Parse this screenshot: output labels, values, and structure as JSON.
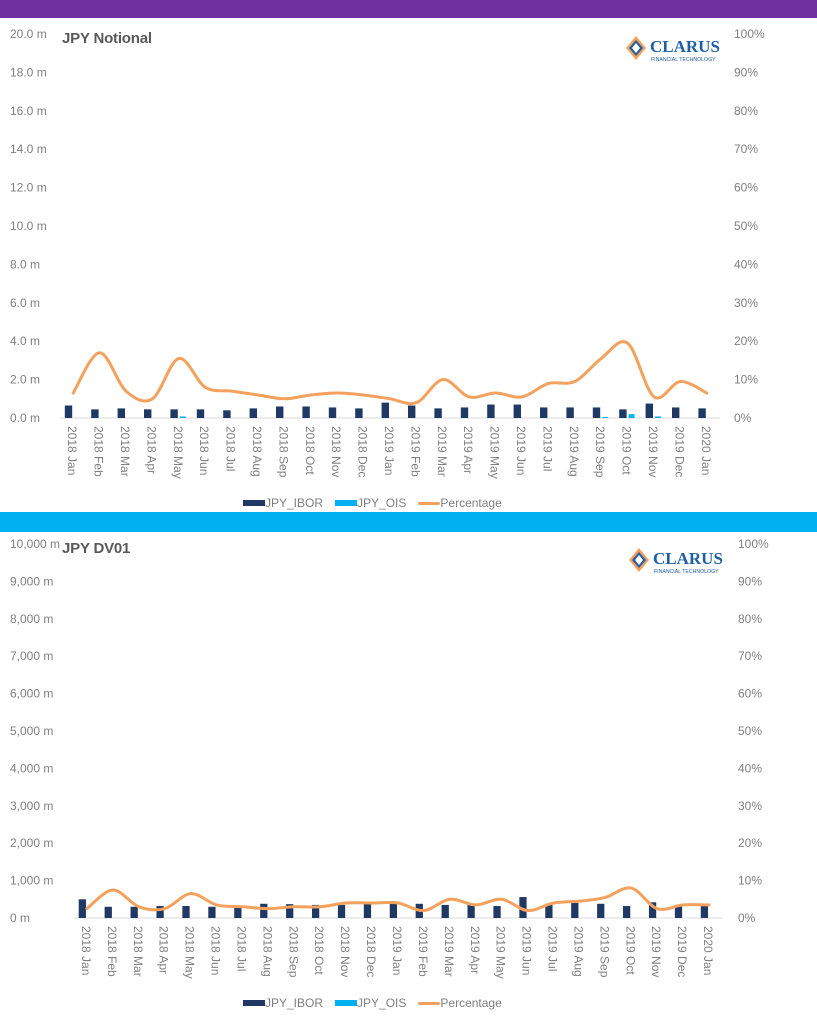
{
  "colors": {
    "top_band": "#7030a0",
    "middle_band": "#00b0f0",
    "ibor": "#1f3864",
    "ois": "#00b0f0",
    "percentage": "#f4a15d",
    "axis_text": "#7f7f7f"
  },
  "logo": {
    "name": "CLARUS",
    "tagline": "FINANCIAL TECHNOLOGY"
  },
  "legend_labels": [
    "JPY_IBOR",
    "JPY_OIS",
    "Percentage"
  ],
  "chart_data": [
    {
      "type": "bar",
      "title": "JPY Notional",
      "categories": [
        "2018 Jan",
        "2018 Feb",
        "2018 Mar",
        "2018 Apr",
        "2018 May",
        "2018 Jun",
        "2018 Jul",
        "2018 Aug",
        "2018 Sep",
        "2018 Oct",
        "2018 Nov",
        "2018 Dec",
        "2019 Jan",
        "2019 Feb",
        "2019 Mar",
        "2019 Apr",
        "2019 May",
        "2019 Jun",
        "2019 Jul",
        "2019 Aug",
        "2019 Sep",
        "2019 Oct",
        "2019 Nov",
        "2019 Dec",
        "2020 Jan"
      ],
      "left_axis": {
        "ylim": [
          0,
          20
        ],
        "ticks": [
          "0.0 m",
          "2.0 m",
          "4.0 m",
          "6.0 m",
          "8.0 m",
          "10.0 m",
          "12.0 m",
          "14.0 m",
          "16.0 m",
          "18.0 m",
          "20.0 m"
        ]
      },
      "right_axis": {
        "ylim": [
          0,
          100
        ],
        "ticks": [
          "0%",
          "10%",
          "20%",
          "30%",
          "40%",
          "50%",
          "60%",
          "70%",
          "80%",
          "90%",
          "100%"
        ]
      },
      "series": [
        {
          "name": "JPY_IBOR",
          "kind": "bar",
          "axis": "left",
          "values": [
            0.65,
            0.45,
            0.5,
            0.45,
            0.45,
            0.45,
            0.4,
            0.5,
            0.6,
            0.6,
            0.55,
            0.5,
            0.8,
            0.65,
            0.5,
            0.55,
            0.7,
            0.7,
            0.55,
            0.55,
            0.55,
            0.45,
            0.75,
            0.55,
            0.5
          ]
        },
        {
          "name": "JPY_OIS",
          "kind": "bar",
          "axis": "left",
          "values": [
            0,
            0,
            0,
            0,
            0.08,
            0,
            0,
            0,
            0,
            0,
            0,
            0,
            0,
            0,
            0,
            0,
            0,
            0,
            0,
            0,
            0.05,
            0.2,
            0.08,
            0,
            0
          ]
        },
        {
          "name": "Percentage",
          "kind": "line",
          "axis": "right",
          "values": [
            6.5,
            17,
            7,
            5,
            15.5,
            8,
            7,
            6,
            5,
            6,
            6.5,
            6,
            5,
            4,
            10,
            5.5,
            6.5,
            5.5,
            9,
            9.5,
            15.5,
            19.5,
            5.5,
            9.5,
            6.5
          ]
        }
      ]
    },
    {
      "type": "bar",
      "title": "JPY DV01",
      "categories": [
        "2018 Jan",
        "2018 Feb",
        "2018 Mar",
        "2018 Apr",
        "2018 May",
        "2018 Jun",
        "2018 Jul",
        "2018 Aug",
        "2018 Sep",
        "2018 Oct",
        "2018 Nov",
        "2018 Dec",
        "2019 Jan",
        "2019 Feb",
        "2019 Mar",
        "2019 Apr",
        "2019 May",
        "2019 Jun",
        "2019 Jul",
        "2019 Aug",
        "2019 Sep",
        "2019 Oct",
        "2019 Nov",
        "2019 Dec",
        "2020 Jan"
      ],
      "left_axis": {
        "ylim": [
          0,
          10000
        ],
        "ticks": [
          "0 m",
          "1,000 m",
          "2,000 m",
          "3,000 m",
          "4,000 m",
          "5,000 m",
          "6,000 m",
          "7,000 m",
          "8,000 m",
          "9,000 m",
          "10,000 m"
        ]
      },
      "right_axis": {
        "ylim": [
          0,
          100
        ],
        "ticks": [
          "0%",
          "10%",
          "20%",
          "30%",
          "40%",
          "50%",
          "60%",
          "70%",
          "80%",
          "90%",
          "100%"
        ]
      },
      "series": [
        {
          "name": "JPY_IBOR",
          "kind": "bar",
          "axis": "left",
          "values": [
            500,
            300,
            300,
            320,
            320,
            300,
            320,
            380,
            370,
            350,
            350,
            380,
            400,
            380,
            350,
            360,
            320,
            560,
            380,
            400,
            380,
            320,
            420,
            350,
            330
          ]
        },
        {
          "name": "JPY_OIS",
          "kind": "bar",
          "axis": "left",
          "values": [
            0,
            0,
            0,
            0,
            0,
            0,
            0,
            0,
            0,
            0,
            0,
            0,
            0,
            0,
            0,
            0,
            0,
            0,
            0,
            0,
            0,
            0,
            0,
            0,
            0
          ]
        },
        {
          "name": "Percentage",
          "kind": "line",
          "axis": "right",
          "values": [
            2.5,
            7.5,
            3,
            2.5,
            6.5,
            3.5,
            3,
            2.5,
            3,
            3,
            4,
            4,
            4,
            2,
            5,
            3.5,
            5,
            2,
            4,
            4.5,
            5.5,
            8,
            2.5,
            3.5,
            3.5
          ]
        }
      ]
    }
  ]
}
